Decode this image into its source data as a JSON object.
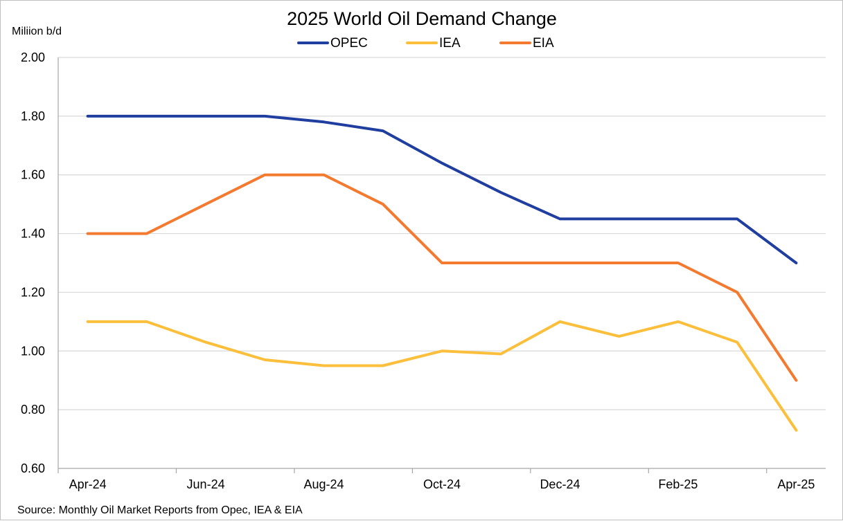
{
  "chart_data": {
    "type": "line",
    "title": "2025 World Oil Demand Change",
    "ylabel": "Miliion b/d",
    "xlabel": "",
    "source": "Source: Monthly Oil Market Reports from Opec, IEA & EIA",
    "x": [
      "Apr-24",
      "May-24",
      "Jun-24",
      "Jul-24",
      "Aug-24",
      "Sep-24",
      "Oct-24",
      "Nov-24",
      "Dec-24",
      "Jan-25",
      "Feb-25",
      "Mar-25",
      "Apr-25"
    ],
    "x_tick_labels": [
      "Apr-24",
      "Jun-24",
      "Aug-24",
      "Oct-24",
      "Dec-24",
      "Feb-25",
      "Apr-25"
    ],
    "ylim": [
      0.6,
      2.0
    ],
    "y_ticks": [
      0.6,
      0.8,
      1.0,
      1.2,
      1.4,
      1.6,
      1.8,
      2.0
    ],
    "y_tick_labels": [
      "0.60",
      "0.80",
      "1.00",
      "1.20",
      "1.40",
      "1.60",
      "1.80",
      "2.00"
    ],
    "grid": true,
    "legend_position": "top",
    "series": [
      {
        "name": "OPEC",
        "color": "#1f3ea0",
        "values": [
          1.8,
          1.8,
          1.8,
          1.8,
          1.78,
          1.75,
          1.64,
          1.54,
          1.45,
          1.45,
          1.45,
          1.45,
          1.3
        ]
      },
      {
        "name": "IEA",
        "color": "#fbbf3c",
        "values": [
          1.1,
          1.1,
          1.03,
          0.97,
          0.95,
          0.95,
          1.0,
          0.99,
          1.1,
          1.05,
          1.1,
          1.03,
          0.73
        ]
      },
      {
        "name": "EIA",
        "color": "#f47a30",
        "values": [
          1.4,
          1.4,
          1.5,
          1.6,
          1.6,
          1.5,
          1.3,
          1.3,
          1.3,
          1.3,
          1.3,
          1.2,
          0.9
        ]
      }
    ]
  }
}
